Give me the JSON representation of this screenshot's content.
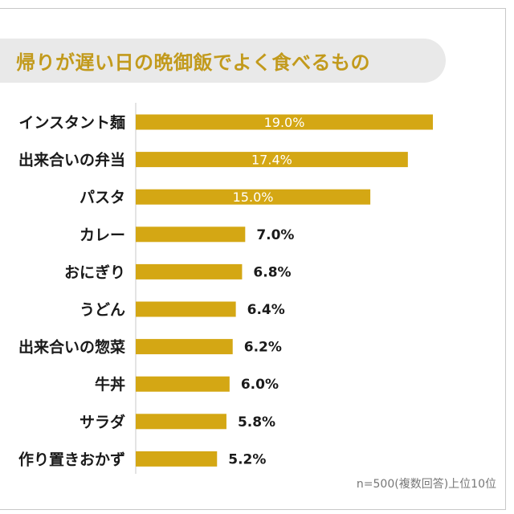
{
  "chart_data": {
    "type": "bar",
    "orientation": "horizontal",
    "title": "帰りが遅い日の晩御飯でよく食べるもの",
    "categories": [
      "インスタント麺",
      "出来合いの弁当",
      "パスタ",
      "カレー",
      "おにぎり",
      "うどん",
      "出来合いの惣菜",
      "牛丼",
      "サラダ",
      "作り置きおかず"
    ],
    "values": [
      19.0,
      17.4,
      15.0,
      7.0,
      6.8,
      6.4,
      6.2,
      6.0,
      5.8,
      5.2
    ],
    "value_labels": [
      "19.0%",
      "17.4%",
      "15.0%",
      "7.0%",
      "6.8%",
      "6.4%",
      "6.2%",
      "6.0%",
      "5.8%",
      "5.2%"
    ],
    "unit": "%",
    "xlim": [
      0,
      19.0
    ],
    "bar_color": "#d4a714",
    "note": "n=500(複数回答)上位10位"
  }
}
